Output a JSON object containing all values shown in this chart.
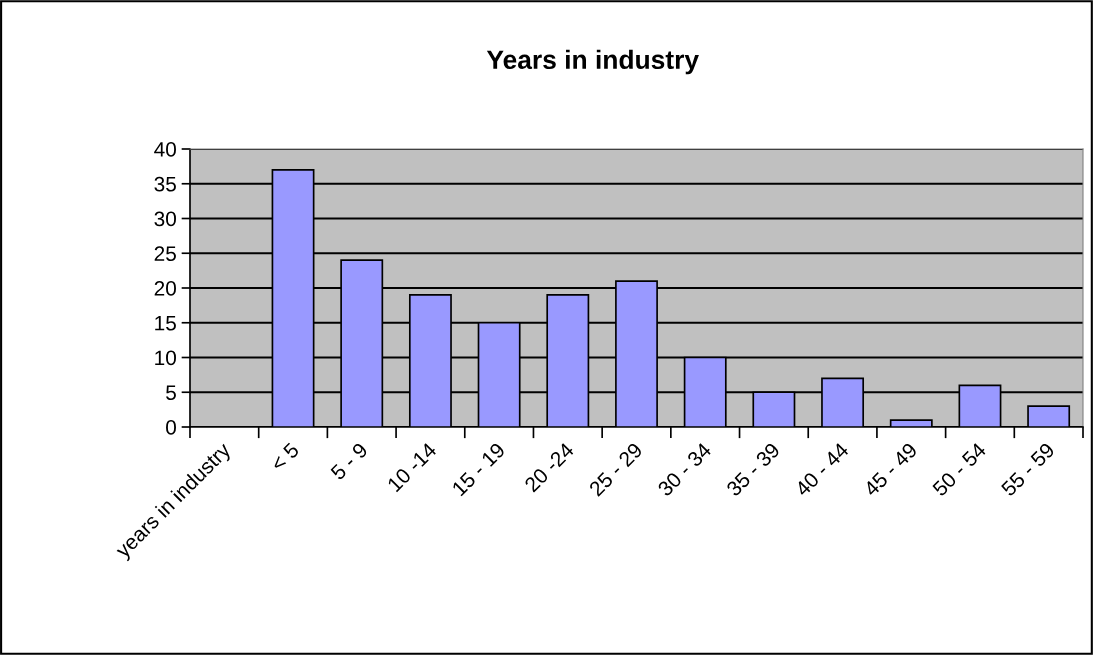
{
  "chart_data": {
    "type": "bar",
    "title": "Years in industry",
    "categories": [
      "years in industry",
      "< 5",
      "5 - 9",
      "10 -14",
      "15 - 19",
      "20 -24",
      "25 - 29",
      "30 - 34",
      "35 - 39",
      "40 - 44",
      "45 - 49",
      "50 - 54",
      "55 - 59"
    ],
    "values": [
      null,
      37,
      24,
      19,
      15,
      19,
      21,
      10,
      5,
      7,
      1,
      6,
      3
    ],
    "color": "#9999ff",
    "ylim": [
      0,
      40
    ],
    "yticks": [
      0,
      5,
      10,
      15,
      20,
      25,
      30,
      35,
      40
    ],
    "grid": "y"
  }
}
